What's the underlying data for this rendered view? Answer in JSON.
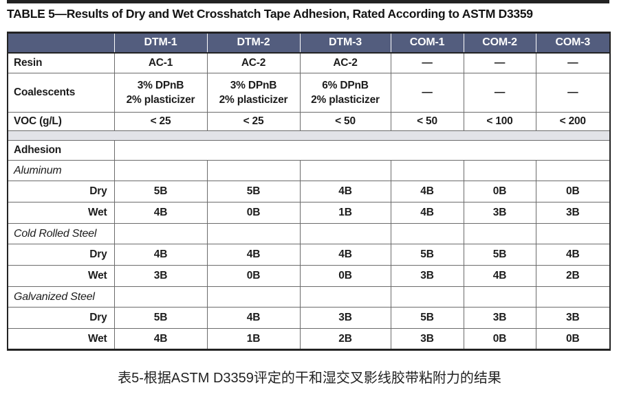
{
  "title": "TABLE 5—Results of Dry and Wet Crosshatch Tape Adhesion, Rated According to ASTM D3359",
  "caption": "表5-根据ASTM D3359评定的干和湿交叉影线胶带粘附力的结果",
  "colors": {
    "header_bg": "#535d7e",
    "header_text": "#ffffff",
    "separator_bg": "#e2e3e8",
    "grid_line": "#6a6a6a",
    "outer_line": "#232323",
    "text": "#1c1c1c"
  },
  "table": {
    "columns": [
      "",
      "DTM-1",
      "DTM-2",
      "DTM-3",
      "COM-1",
      "COM-2",
      "COM-3"
    ],
    "rows": [
      {
        "type": "property",
        "label": "Resin",
        "values": [
          "AC-1",
          "AC-2",
          "AC-2",
          "—",
          "—",
          "—"
        ]
      },
      {
        "type": "property",
        "variant": "coalescents",
        "label": "Coalescents",
        "values": [
          [
            "3% DPnB",
            "2% plasticizer"
          ],
          [
            "3% DPnB",
            "2% plasticizer"
          ],
          [
            "6% DPnB",
            "2% plasticizer"
          ],
          "—",
          "—",
          "—"
        ]
      },
      {
        "type": "property",
        "variant": "voc",
        "label": "VOC (g/L)",
        "values": [
          "< 25",
          "< 25",
          "< 50",
          "< 50",
          "< 100",
          "< 200"
        ]
      },
      {
        "type": "separator"
      },
      {
        "type": "section",
        "label": "Adhesion"
      },
      {
        "type": "substrate",
        "label": "Aluminum"
      },
      {
        "type": "data",
        "label": "Dry",
        "values": [
          "5B",
          "5B",
          "4B",
          "4B",
          "0B",
          "0B"
        ]
      },
      {
        "type": "data",
        "label": "Wet",
        "values": [
          "4B",
          "0B",
          "1B",
          "4B",
          "3B",
          "3B"
        ]
      },
      {
        "type": "substrate",
        "label": "Cold Rolled Steel"
      },
      {
        "type": "data",
        "label": "Dry",
        "values": [
          "4B",
          "4B",
          "4B",
          "5B",
          "5B",
          "4B"
        ]
      },
      {
        "type": "data",
        "label": "Wet",
        "values": [
          "3B",
          "0B",
          "0B",
          "3B",
          "4B",
          "2B"
        ]
      },
      {
        "type": "substrate",
        "label": "Galvanized Steel"
      },
      {
        "type": "data",
        "label": "Dry",
        "values": [
          "5B",
          "4B",
          "3B",
          "5B",
          "3B",
          "3B"
        ]
      },
      {
        "type": "data",
        "label": "Wet",
        "values": [
          "4B",
          "1B",
          "2B",
          "3B",
          "0B",
          "0B"
        ]
      }
    ]
  }
}
